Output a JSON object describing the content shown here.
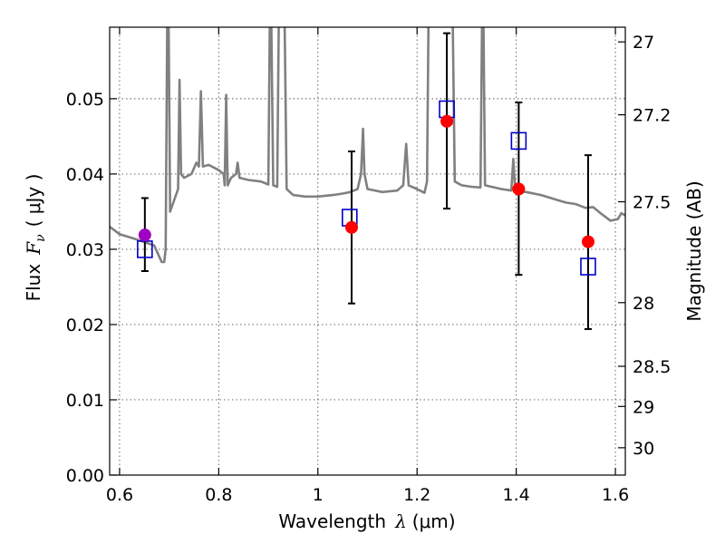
{
  "chart_data": {
    "type": "scatter",
    "xlabel_text": "Wavelength",
    "xlabel_symbol": "λ",
    "xlabel_unit": "(μm)",
    "ylabel_text": "Flux",
    "ylabel_symbol": "F",
    "ylabel_subscript": "ν",
    "ylabel_unit": "( μJy )",
    "y2label": "Magnitude (AB)",
    "xlim": [
      0.58,
      1.62
    ],
    "ylim": [
      0.0,
      0.0595
    ],
    "xticks": [
      0.6,
      0.8,
      1.0,
      1.2,
      1.4,
      1.6
    ],
    "xtick_labels": [
      "0.6",
      "0.8",
      "1",
      "1.2",
      "1.4",
      "1.6"
    ],
    "yticks": [
      0.0,
      0.01,
      0.02,
      0.03,
      0.04,
      0.05
    ],
    "ytick_labels": [
      "0.00",
      "0.01",
      "0.02",
      "0.03",
      "0.04",
      "0.05"
    ],
    "mag_ticks": [
      27,
      27.2,
      27.5,
      28,
      28.5,
      29,
      30
    ],
    "mag_tick_labels": [
      "27",
      "27.2",
      "27.5",
      "28",
      "28.5",
      "29",
      "30"
    ],
    "grid": true,
    "colors": {
      "model": "#808080",
      "observed": "#ff0000",
      "observed_first": "#a000c0",
      "model_box": "#0000cc",
      "errorbar": "#000000"
    },
    "observed": [
      {
        "x": 0.651,
        "y": 0.0319,
        "err_low": 0.0271,
        "err_high": 0.0368
      },
      {
        "x": 1.068,
        "y": 0.0329,
        "err_low": 0.0228,
        "err_high": 0.043
      },
      {
        "x": 1.26,
        "y": 0.047,
        "err_low": 0.0354,
        "err_high": 0.0587
      },
      {
        "x": 1.405,
        "y": 0.038,
        "err_low": 0.0266,
        "err_high": 0.0495
      },
      {
        "x": 1.545,
        "y": 0.031,
        "err_low": 0.0194,
        "err_high": 0.0425
      }
    ],
    "model_photometry": [
      {
        "x": 0.651,
        "y": 0.03
      },
      {
        "x": 1.064,
        "y": 0.0342
      },
      {
        "x": 1.26,
        "y": 0.0486
      },
      {
        "x": 1.405,
        "y": 0.0444
      },
      {
        "x": 1.545,
        "y": 0.0277
      }
    ],
    "model_spectrum": [
      [
        0.58,
        0.033
      ],
      [
        0.6,
        0.032
      ],
      [
        0.64,
        0.0312
      ],
      [
        0.67,
        0.0305
      ],
      [
        0.685,
        0.0283
      ],
      [
        0.69,
        0.0283
      ],
      [
        0.693,
        0.03
      ],
      [
        0.696,
        0.06
      ],
      [
        0.699,
        0.06
      ],
      [
        0.702,
        0.035
      ],
      [
        0.71,
        0.0365
      ],
      [
        0.718,
        0.038
      ],
      [
        0.721,
        0.0525
      ],
      [
        0.724,
        0.04
      ],
      [
        0.73,
        0.0395
      ],
      [
        0.745,
        0.04
      ],
      [
        0.755,
        0.0415
      ],
      [
        0.76,
        0.041
      ],
      [
        0.764,
        0.051
      ],
      [
        0.768,
        0.041
      ],
      [
        0.78,
        0.0412
      ],
      [
        0.8,
        0.0405
      ],
      [
        0.81,
        0.04
      ],
      [
        0.812,
        0.0385
      ],
      [
        0.815,
        0.0505
      ],
      [
        0.818,
        0.0385
      ],
      [
        0.825,
        0.0395
      ],
      [
        0.835,
        0.04
      ],
      [
        0.838,
        0.0415
      ],
      [
        0.842,
        0.0395
      ],
      [
        0.86,
        0.0392
      ],
      [
        0.885,
        0.039
      ],
      [
        0.9,
        0.0386
      ],
      [
        0.903,
        0.06
      ],
      [
        0.906,
        0.06
      ],
      [
        0.91,
        0.0385
      ],
      [
        0.918,
        0.0383
      ],
      [
        0.921,
        0.06
      ],
      [
        0.925,
        0.06
      ],
      [
        0.929,
        0.06
      ],
      [
        0.933,
        0.06
      ],
      [
        0.937,
        0.038
      ],
      [
        0.95,
        0.0372
      ],
      [
        0.975,
        0.037
      ],
      [
        1.0,
        0.037
      ],
      [
        1.03,
        0.0372
      ],
      [
        1.05,
        0.0374
      ],
      [
        1.065,
        0.0376
      ],
      [
        1.08,
        0.038
      ],
      [
        1.087,
        0.04
      ],
      [
        1.091,
        0.046
      ],
      [
        1.094,
        0.04
      ],
      [
        1.1,
        0.038
      ],
      [
        1.13,
        0.0376
      ],
      [
        1.16,
        0.0378
      ],
      [
        1.172,
        0.0385
      ],
      [
        1.178,
        0.044
      ],
      [
        1.183,
        0.0385
      ],
      [
        1.2,
        0.038
      ],
      [
        1.215,
        0.0375
      ],
      [
        1.22,
        0.039
      ],
      [
        1.223,
        0.06
      ],
      [
        1.23,
        0.06
      ],
      [
        1.24,
        0.06
      ],
      [
        1.255,
        0.06
      ],
      [
        1.265,
        0.06
      ],
      [
        1.272,
        0.06
      ],
      [
        1.276,
        0.039
      ],
      [
        1.29,
        0.0385
      ],
      [
        1.31,
        0.0383
      ],
      [
        1.328,
        0.0382
      ],
      [
        1.331,
        0.06
      ],
      [
        1.334,
        0.06
      ],
      [
        1.337,
        0.0385
      ],
      [
        1.35,
        0.0383
      ],
      [
        1.37,
        0.038
      ],
      [
        1.39,
        0.0378
      ],
      [
        1.394,
        0.042
      ],
      [
        1.398,
        0.0378
      ],
      [
        1.42,
        0.0376
      ],
      [
        1.45,
        0.0372
      ],
      [
        1.48,
        0.0366
      ],
      [
        1.5,
        0.0362
      ],
      [
        1.52,
        0.036
      ],
      [
        1.54,
        0.0355
      ],
      [
        1.555,
        0.0356
      ],
      [
        1.57,
        0.0348
      ],
      [
        1.59,
        0.0338
      ],
      [
        1.605,
        0.034
      ],
      [
        1.612,
        0.0348
      ],
      [
        1.62,
        0.0345
      ]
    ]
  }
}
